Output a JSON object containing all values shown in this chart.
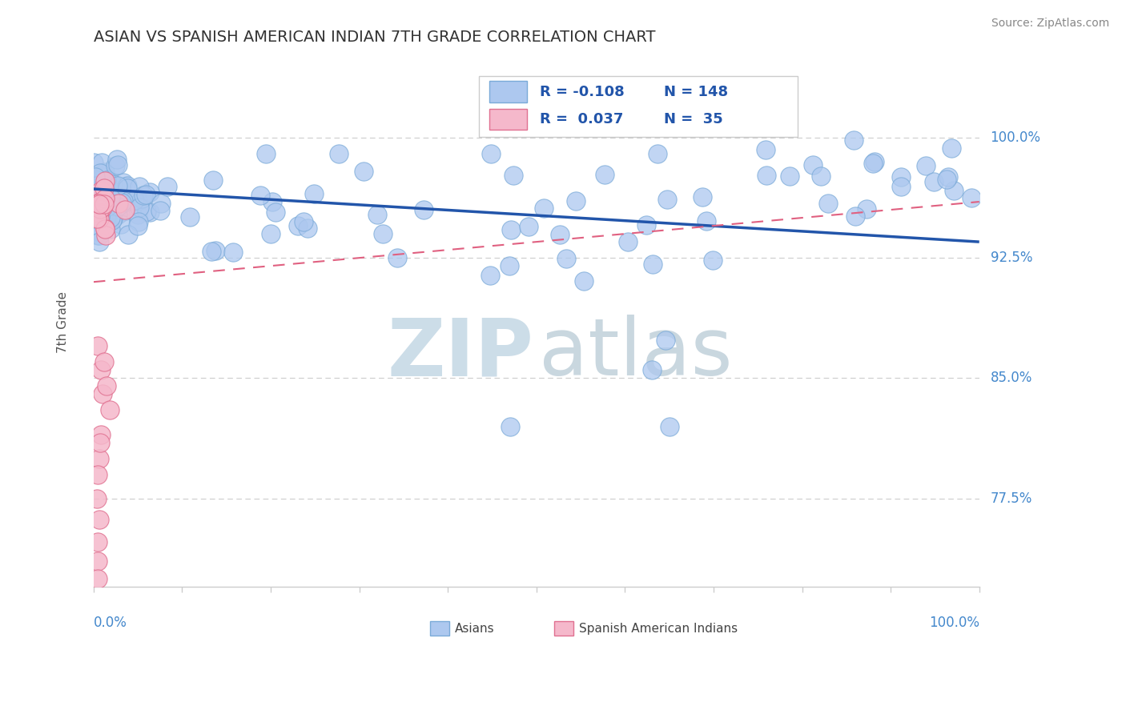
{
  "title": "ASIAN VS SPANISH AMERICAN INDIAN 7TH GRADE CORRELATION CHART",
  "source": "Source: ZipAtlas.com",
  "ylabel": "7th Grade",
  "ylabel_right_labels": [
    "100.0%",
    "92.5%",
    "85.0%",
    "77.5%"
  ],
  "ylabel_right_values": [
    1.0,
    0.925,
    0.85,
    0.775
  ],
  "xmin": 0.0,
  "xmax": 1.0,
  "ymin": 0.72,
  "ymax": 1.05,
  "legend_r_asian": "-0.108",
  "legend_n_asian": "148",
  "legend_r_spanish": "0.037",
  "legend_n_spanish": "35",
  "asian_color": "#adc8ef",
  "asian_edge_color": "#7aaad8",
  "spanish_color": "#f5b8cb",
  "spanish_edge_color": "#e07090",
  "trend_asian_color": "#2255aa",
  "trend_spanish_color": "#e06080",
  "background_color": "#ffffff",
  "hline_color": "#cccccc",
  "right_label_color": "#4488cc",
  "title_color": "#333333",
  "source_color": "#888888",
  "axis_color": "#cccccc",
  "ylabel_color": "#555555",
  "bottom_label_color": "#444444"
}
